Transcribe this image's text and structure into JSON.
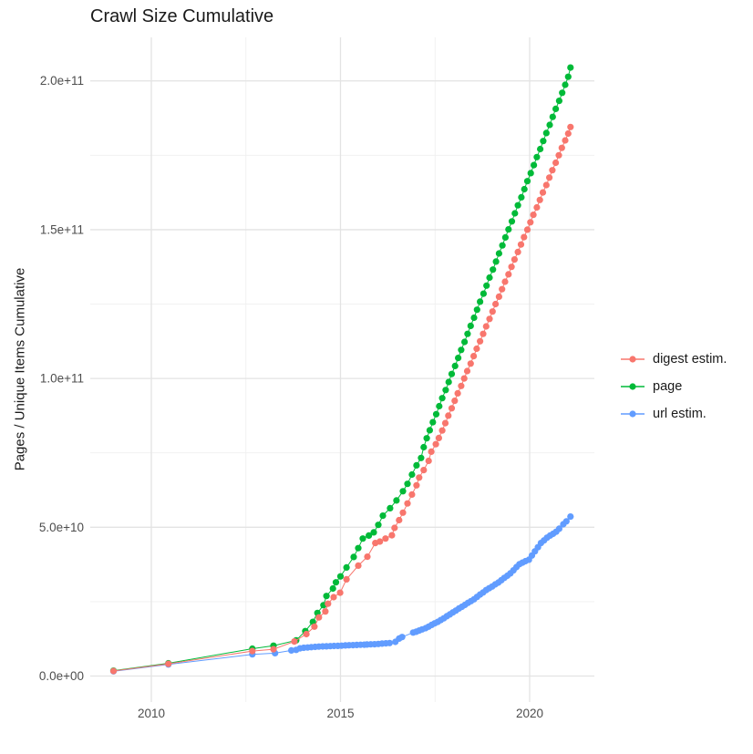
{
  "page": {
    "background_color": "#ffffff"
  },
  "chart_data": {
    "type": "line",
    "title": "Crawl Size Cumulative",
    "xlabel": "",
    "ylabel": "Pages / Unique Items Cumulative",
    "value_units": "points are [year, items_in_billions]; y axis displayed in scientific notation",
    "xlim": [
      2008.4,
      2021.7
    ],
    "ylim_billions": [
      0,
      214
    ],
    "grid": true,
    "legend_position": "right",
    "x_ticks": {
      "values": [
        2010,
        2015,
        2020
      ],
      "labels": [
        "2010",
        "2015",
        "2020"
      ]
    },
    "x_minor_ticks": [
      2012.5,
      2017.5
    ],
    "y_ticks": {
      "values_billions": [
        0,
        50,
        100,
        150,
        200
      ],
      "labels": [
        "0.0e+00",
        "5.0e+10",
        "1.0e+11",
        "1.5e+11",
        "2.0e+11"
      ]
    },
    "y_minor_ticks_billions": [
      25,
      75,
      125,
      175
    ],
    "series": [
      {
        "name": "digest estim.",
        "color": "#F8766D",
        "points": [
          [
            2009.0,
            1.7
          ],
          [
            2010.45,
            4.1
          ],
          [
            2012.67,
            8.4
          ],
          [
            2013.23,
            9.0
          ],
          [
            2013.78,
            11.6
          ],
          [
            2014.1,
            14.1
          ],
          [
            2014.31,
            16.6
          ],
          [
            2014.43,
            19.7
          ],
          [
            2014.6,
            21.7
          ],
          [
            2014.67,
            24.3
          ],
          [
            2014.82,
            26.5
          ],
          [
            2014.99,
            28.0
          ],
          [
            2015.16,
            32.5
          ],
          [
            2015.47,
            37.1
          ],
          [
            2015.71,
            40.1
          ],
          [
            2015.92,
            44.7
          ],
          [
            2016.04,
            45.2
          ],
          [
            2016.19,
            46.2
          ],
          [
            2016.36,
            47.3
          ],
          [
            2016.43,
            49.8
          ],
          [
            2016.55,
            52.4
          ],
          [
            2016.65,
            54.9
          ],
          [
            2016.77,
            58.0
          ],
          [
            2016.89,
            61.0
          ],
          [
            2017.01,
            64.1
          ],
          [
            2017.08,
            66.7
          ],
          [
            2017.2,
            69.2
          ],
          [
            2017.33,
            72.3
          ],
          [
            2017.4,
            75.4
          ],
          [
            2017.52,
            77.9
          ],
          [
            2017.6,
            80.0
          ],
          [
            2017.69,
            82.5
          ],
          [
            2017.77,
            85.0
          ],
          [
            2017.85,
            87.5
          ],
          [
            2017.94,
            90.0
          ],
          [
            2018.02,
            92.5
          ],
          [
            2018.1,
            95.0
          ],
          [
            2018.19,
            97.5
          ],
          [
            2018.27,
            100.0
          ],
          [
            2018.35,
            102.5
          ],
          [
            2018.44,
            105.0
          ],
          [
            2018.52,
            107.5
          ],
          [
            2018.6,
            110.0
          ],
          [
            2018.69,
            112.5
          ],
          [
            2018.77,
            115.0
          ],
          [
            2018.85,
            117.5
          ],
          [
            2018.94,
            120.0
          ],
          [
            2019.02,
            122.5
          ],
          [
            2019.1,
            125.0
          ],
          [
            2019.19,
            127.5
          ],
          [
            2019.27,
            130.0
          ],
          [
            2019.35,
            132.5
          ],
          [
            2019.44,
            135.0
          ],
          [
            2019.52,
            137.5
          ],
          [
            2019.6,
            140.0
          ],
          [
            2019.69,
            142.5
          ],
          [
            2019.77,
            145.0
          ],
          [
            2019.85,
            147.5
          ],
          [
            2019.94,
            150.0
          ],
          [
            2020.02,
            152.5
          ],
          [
            2020.1,
            155.0
          ],
          [
            2020.19,
            157.5
          ],
          [
            2020.27,
            160.0
          ],
          [
            2020.35,
            162.5
          ],
          [
            2020.44,
            165.0
          ],
          [
            2020.52,
            167.5
          ],
          [
            2020.6,
            170.0
          ],
          [
            2020.69,
            172.5
          ],
          [
            2020.77,
            175.0
          ],
          [
            2020.85,
            177.5
          ],
          [
            2020.94,
            180.0
          ],
          [
            2021.02,
            182.3
          ],
          [
            2021.08,
            184.5
          ]
        ]
      },
      {
        "name": "page",
        "color": "#00BA38",
        "points": [
          [
            2009.0,
            1.8
          ],
          [
            2010.45,
            4.3
          ],
          [
            2012.67,
            9.2
          ],
          [
            2013.23,
            10.2
          ],
          [
            2013.83,
            12.0
          ],
          [
            2014.07,
            15.1
          ],
          [
            2014.27,
            18.2
          ],
          [
            2014.39,
            21.2
          ],
          [
            2014.55,
            23.8
          ],
          [
            2014.63,
            26.9
          ],
          [
            2014.8,
            29.4
          ],
          [
            2014.88,
            31.5
          ],
          [
            2015.0,
            33.5
          ],
          [
            2015.16,
            36.5
          ],
          [
            2015.35,
            40.0
          ],
          [
            2015.47,
            43.0
          ],
          [
            2015.59,
            46.2
          ],
          [
            2015.75,
            47.2
          ],
          [
            2015.88,
            48.3
          ],
          [
            2016.0,
            50.8
          ],
          [
            2016.12,
            53.9
          ],
          [
            2016.31,
            56.4
          ],
          [
            2016.48,
            59.0
          ],
          [
            2016.65,
            62.1
          ],
          [
            2016.77,
            64.6
          ],
          [
            2016.89,
            67.7
          ],
          [
            2017.01,
            70.8
          ],
          [
            2017.13,
            73.3
          ],
          [
            2017.2,
            76.9
          ],
          [
            2017.28,
            79.9
          ],
          [
            2017.36,
            82.6
          ],
          [
            2017.44,
            85.3
          ],
          [
            2017.53,
            88.0
          ],
          [
            2017.61,
            90.7
          ],
          [
            2017.69,
            93.4
          ],
          [
            2017.78,
            96.1
          ],
          [
            2017.86,
            98.8
          ],
          [
            2017.94,
            101.5
          ],
          [
            2018.03,
            104.2
          ],
          [
            2018.11,
            106.9
          ],
          [
            2018.19,
            109.6
          ],
          [
            2018.28,
            112.3
          ],
          [
            2018.36,
            115.0
          ],
          [
            2018.44,
            117.7
          ],
          [
            2018.53,
            120.4
          ],
          [
            2018.61,
            123.1
          ],
          [
            2018.69,
            125.8
          ],
          [
            2018.78,
            128.5
          ],
          [
            2018.86,
            131.2
          ],
          [
            2018.94,
            133.9
          ],
          [
            2019.03,
            136.6
          ],
          [
            2019.11,
            139.3
          ],
          [
            2019.19,
            142.0
          ],
          [
            2019.28,
            144.7
          ],
          [
            2019.36,
            147.4
          ],
          [
            2019.44,
            150.1
          ],
          [
            2019.53,
            152.8
          ],
          [
            2019.61,
            155.5
          ],
          [
            2019.69,
            158.2
          ],
          [
            2019.78,
            160.9
          ],
          [
            2019.86,
            163.6
          ],
          [
            2019.94,
            166.3
          ],
          [
            2020.03,
            169.0
          ],
          [
            2020.11,
            171.7
          ],
          [
            2020.19,
            174.4
          ],
          [
            2020.28,
            177.1
          ],
          [
            2020.36,
            179.8
          ],
          [
            2020.44,
            182.5
          ],
          [
            2020.53,
            185.2
          ],
          [
            2020.61,
            187.9
          ],
          [
            2020.69,
            190.6
          ],
          [
            2020.78,
            193.3
          ],
          [
            2020.86,
            196.0
          ],
          [
            2020.94,
            198.7
          ],
          [
            2021.02,
            201.4
          ],
          [
            2021.08,
            204.5
          ]
        ]
      },
      {
        "name": "url estim.",
        "color": "#619CFF",
        "points": [
          [
            2009.0,
            1.6
          ],
          [
            2010.45,
            3.9
          ],
          [
            2012.67,
            7.3
          ],
          [
            2013.27,
            7.7
          ],
          [
            2013.7,
            8.6
          ],
          [
            2013.83,
            8.8
          ],
          [
            2013.93,
            9.3
          ],
          [
            2014.03,
            9.5
          ],
          [
            2014.13,
            9.6
          ],
          [
            2014.23,
            9.7
          ],
          [
            2014.33,
            9.8
          ],
          [
            2014.43,
            9.9
          ],
          [
            2014.53,
            9.95
          ],
          [
            2014.63,
            10.0
          ],
          [
            2014.73,
            10.05
          ],
          [
            2014.83,
            10.1
          ],
          [
            2014.93,
            10.15
          ],
          [
            2015.03,
            10.2
          ],
          [
            2015.13,
            10.3
          ],
          [
            2015.23,
            10.35
          ],
          [
            2015.33,
            10.4
          ],
          [
            2015.43,
            10.45
          ],
          [
            2015.53,
            10.5
          ],
          [
            2015.63,
            10.55
          ],
          [
            2015.7,
            10.6
          ],
          [
            2015.8,
            10.65
          ],
          [
            2015.9,
            10.7
          ],
          [
            2016.0,
            10.8
          ],
          [
            2016.1,
            10.9
          ],
          [
            2016.2,
            11.0
          ],
          [
            2016.3,
            11.1
          ],
          [
            2016.45,
            11.5
          ],
          [
            2016.55,
            12.6
          ],
          [
            2016.63,
            13.1
          ],
          [
            2016.92,
            14.6
          ],
          [
            2017.0,
            14.9
          ],
          [
            2017.08,
            15.3
          ],
          [
            2017.16,
            15.7
          ],
          [
            2017.25,
            16.1
          ],
          [
            2017.33,
            16.6
          ],
          [
            2017.41,
            17.2
          ],
          [
            2017.49,
            17.7
          ],
          [
            2017.57,
            18.2
          ],
          [
            2017.65,
            18.8
          ],
          [
            2017.73,
            19.4
          ],
          [
            2017.81,
            20.1
          ],
          [
            2017.89,
            20.7
          ],
          [
            2017.97,
            21.4
          ],
          [
            2018.05,
            22.0
          ],
          [
            2018.13,
            22.7
          ],
          [
            2018.21,
            23.3
          ],
          [
            2018.29,
            23.9
          ],
          [
            2018.37,
            24.6
          ],
          [
            2018.45,
            25.2
          ],
          [
            2018.53,
            25.8
          ],
          [
            2018.61,
            26.6
          ],
          [
            2018.69,
            27.4
          ],
          [
            2018.77,
            28.1
          ],
          [
            2018.85,
            28.9
          ],
          [
            2018.93,
            29.5
          ],
          [
            2019.01,
            30.1
          ],
          [
            2019.09,
            30.8
          ],
          [
            2019.17,
            31.4
          ],
          [
            2019.25,
            32.2
          ],
          [
            2019.33,
            33.0
          ],
          [
            2019.41,
            33.7
          ],
          [
            2019.49,
            34.5
          ],
          [
            2019.57,
            35.5
          ],
          [
            2019.65,
            36.6
          ],
          [
            2019.73,
            37.6
          ],
          [
            2019.81,
            38.1
          ],
          [
            2019.89,
            38.6
          ],
          [
            2019.98,
            39.1
          ],
          [
            2020.06,
            40.5
          ],
          [
            2020.14,
            41.9
          ],
          [
            2020.22,
            43.3
          ],
          [
            2020.3,
            44.7
          ],
          [
            2020.38,
            45.6
          ],
          [
            2020.46,
            46.5
          ],
          [
            2020.54,
            47.2
          ],
          [
            2020.62,
            47.8
          ],
          [
            2020.7,
            48.5
          ],
          [
            2020.78,
            49.5
          ],
          [
            2020.89,
            51.0
          ],
          [
            2020.97,
            52.0
          ],
          [
            2021.08,
            53.6
          ]
        ]
      }
    ]
  },
  "legend": {
    "items": [
      {
        "label": "digest estim.",
        "color": "#F8766D"
      },
      {
        "label": "page",
        "color": "#00BA38"
      },
      {
        "label": "url estim.",
        "color": "#619CFF"
      }
    ]
  },
  "style": {
    "grid_major_color": "#e3e3e3",
    "grid_minor_color": "#efefef",
    "tick_label_color": "#4d4d4d",
    "text_color": "#1a1a1a"
  }
}
